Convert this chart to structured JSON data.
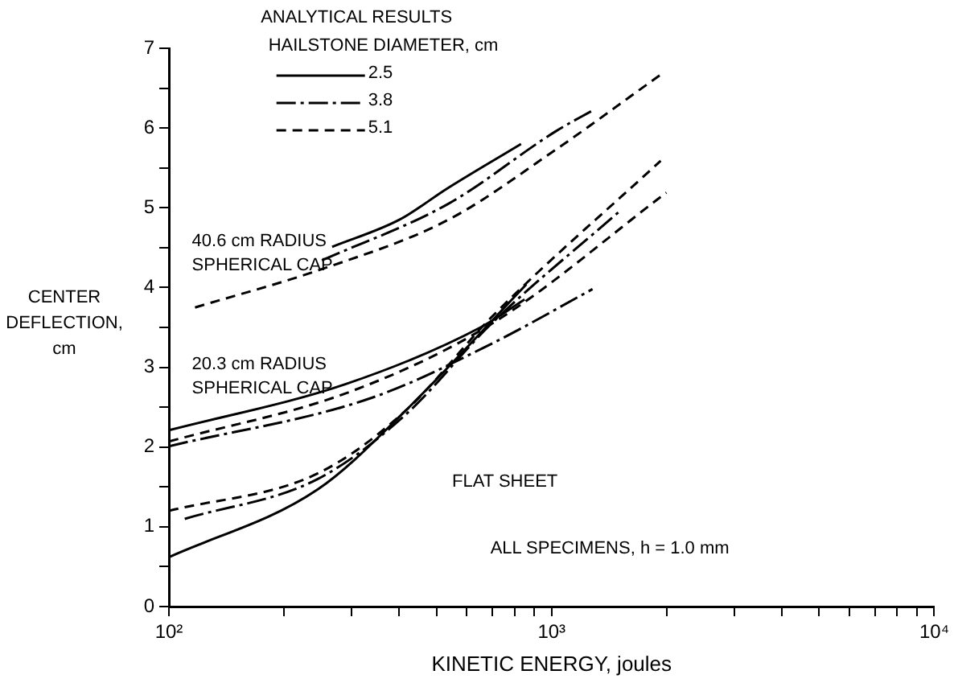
{
  "chart_data": {
    "type": "line",
    "xlabel": "KINETIC ENERGY, joules",
    "ylabel": "CENTER\nDEFLECTION,\ncm",
    "legend_title": "HAILSTONE DIAMETER, cm",
    "legend": "top left",
    "log": "x",
    "grid": false,
    "marker": "none",
    "xlim": [
      100,
      10000
    ],
    "ylim": [
      0,
      7
    ],
    "xticks": [
      {
        "value": 100,
        "label": "10²"
      },
      {
        "value": 200,
        "label": null
      },
      {
        "value": 300,
        "label": null
      },
      {
        "value": 400,
        "label": null
      },
      {
        "value": 500,
        "label": null
      },
      {
        "value": 600,
        "label": null
      },
      {
        "value": 700,
        "label": null
      },
      {
        "value": 800,
        "label": null
      },
      {
        "value": 900,
        "label": null
      },
      {
        "value": 1000,
        "label": "10³"
      },
      {
        "value": 2000,
        "label": null
      },
      {
        "value": 3000,
        "label": null
      },
      {
        "value": 4000,
        "label": null
      },
      {
        "value": 5000,
        "label": null
      },
      {
        "value": 6000,
        "label": null
      },
      {
        "value": 7000,
        "label": null
      },
      {
        "value": 8000,
        "label": null
      },
      {
        "value": 9000,
        "label": null
      },
      {
        "value": 10000,
        "label": "10⁴"
      }
    ],
    "yticks": [
      0,
      {
        "value": 0.5,
        "label": null
      },
      1,
      {
        "value": 1.5,
        "label": null
      },
      2,
      {
        "value": 2.5,
        "label": null
      },
      3,
      {
        "value": 3.5,
        "label": null
      },
      4,
      {
        "value": 4.5,
        "label": null
      },
      5,
      {
        "value": 5.5,
        "label": null
      },
      6,
      {
        "value": 6.5,
        "label": null
      },
      7
    ],
    "annotations": [
      "ANALYTICAL RESULTS",
      "40.6 cm RADIUS\nSPHERICAL CAP",
      "20.3 cm RADIUS\nSPHERICAL CAP",
      "FLAT SHEET",
      "ALL SPECIMENS, h = 1.0 mm"
    ],
    "series": [
      {
        "name": "2.5",
        "color": "#000000",
        "line_style": "solid",
        "x": [
          267,
          400,
          537,
          832
        ],
        "values": [
          4.51,
          4.85,
          5.25,
          5.8
        ]
      },
      {
        "name": "3.8",
        "color": "#000000",
        "line_style": "dashdot",
        "x": [
          251,
          537,
          1026,
          1279
        ],
        "values": [
          4.34,
          5.05,
          5.96,
          6.22
        ]
      },
      {
        "name": "5.1",
        "color": "#000000",
        "line_style": "dashed",
        "x": [
          117,
          247,
          537,
          1026,
          1928
        ],
        "values": [
          3.75,
          4.22,
          4.85,
          5.73,
          6.67
        ]
      },
      {
        "color": "#000000",
        "line_style": "solid",
        "x": [
          100,
          290,
          652,
          850
        ],
        "values": [
          2.21,
          2.79,
          3.5,
          3.85
        ]
      },
      {
        "color": "#000000",
        "line_style": "dashdot",
        "x": [
          100,
          340,
          700,
          1279
        ],
        "values": [
          2.01,
          2.62,
          3.3,
          3.98
        ]
      },
      {
        "color": "#000000",
        "line_style": "dashed",
        "x": [
          100,
          300,
          700,
          1995
        ],
        "values": [
          2.07,
          2.7,
          3.55,
          5.19
        ]
      },
      {
        "color": "#000000",
        "line_style": "solid",
        "x": [
          100,
          245,
          414,
          859
        ],
        "values": [
          0.62,
          1.47,
          2.45,
          4.04
        ]
      },
      {
        "color": "#000000",
        "line_style": "dashdot",
        "x": [
          110,
          245,
          414,
          697,
          1500
        ],
        "values": [
          1.1,
          1.6,
          2.4,
          3.55,
          4.95
        ]
      },
      {
        "color": "#000000",
        "line_style": "dashed",
        "x": [
          100,
          245,
          414,
          697,
          1928
        ],
        "values": [
          1.2,
          1.67,
          2.45,
          3.63,
          5.59
        ]
      }
    ]
  }
}
